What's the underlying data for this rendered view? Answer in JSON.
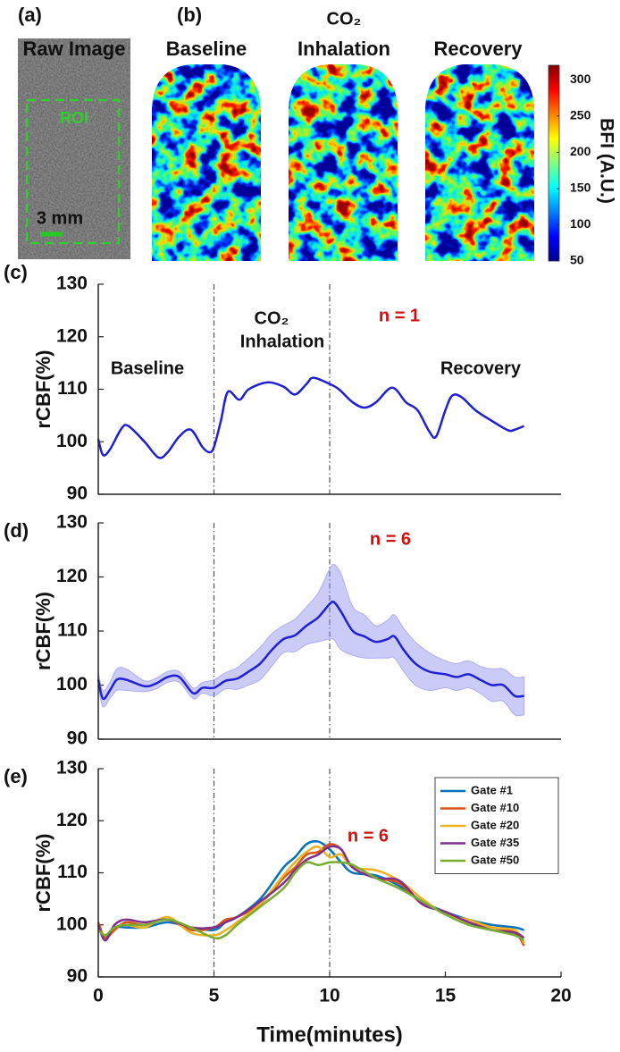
{
  "top": {
    "panel_a": "(a)",
    "raw_title": "Raw Image",
    "roi": "ROI",
    "scale_bar": "3 mm",
    "panel_b": "(b)",
    "maps": [
      {
        "title": [
          "Baseline"
        ]
      },
      {
        "title": [
          "CO₂",
          "Inhalation"
        ]
      },
      {
        "title": [
          "Recovery"
        ]
      }
    ]
  },
  "chart_data": [
    {
      "type": "colorbar",
      "label": "BFI (A.U.)",
      "colormap": "jet",
      "ylim": [
        50,
        320
      ],
      "yticks": [
        50,
        100,
        150,
        200,
        250,
        300
      ]
    },
    {
      "type": "line",
      "panel_label": "(c)",
      "ylabel": "rCBF(%)",
      "xlim": [
        0,
        20
      ],
      "ylim": [
        90,
        130
      ],
      "yticks": [
        90,
        100,
        110,
        120,
        130
      ],
      "vlines": [
        5,
        10
      ],
      "annotations": [
        "Baseline",
        "CO₂",
        "Inhalation",
        "n = 1",
        "Recovery"
      ],
      "x": [
        0,
        0.2,
        0.5,
        1.0,
        1.3,
        2,
        2.6,
        3,
        3.5,
        4,
        4.5,
        4.8,
        5,
        5.3,
        5.6,
        6.1,
        6.5,
        7.3,
        8,
        8.5,
        9,
        9.3,
        10,
        10.4,
        11,
        11.5,
        12,
        12.7,
        13.3,
        13.8,
        14.3,
        14.6,
        15,
        15.3,
        15.7,
        16.3,
        17,
        17.7,
        18,
        18.4
      ],
      "series": [
        {
          "color": "#1f1fd6",
          "values": [
            100.5,
            97.5,
            98.5,
            102.5,
            103,
            100,
            97,
            98,
            101,
            102.3,
            99,
            98,
            99,
            104,
            109.5,
            108,
            110,
            111.3,
            110.5,
            109,
            111,
            112.2,
            111,
            110,
            107.5,
            106.5,
            107.5,
            110.3,
            107.5,
            106,
            102,
            101,
            106,
            108.8,
            108.5,
            106,
            104,
            102.2,
            102.3,
            103
          ]
        }
      ]
    },
    {
      "type": "line",
      "panel_label": "(d)",
      "ylabel": "rCBF(%)",
      "xlim": [
        0,
        20
      ],
      "ylim": [
        90,
        130
      ],
      "yticks": [
        90,
        100,
        110,
        120,
        130
      ],
      "vlines": [
        5,
        10
      ],
      "annotations": [
        "n = 6"
      ],
      "x": [
        0,
        0.2,
        0.5,
        0.8,
        1.2,
        2,
        2.5,
        3,
        3.5,
        4.1,
        4.5,
        5,
        5.5,
        6,
        6.5,
        7,
        7.5,
        8,
        8.5,
        9,
        9.5,
        10,
        10.2,
        10.5,
        11,
        11.5,
        12,
        12.5,
        12.8,
        13.2,
        13.7,
        14.3,
        15,
        15.5,
        16,
        16.5,
        17,
        17.5,
        18,
        18.4
      ],
      "series": [
        {
          "color": "#1f1fd6",
          "band_color": "#8c8cf0",
          "values": [
            101,
            97.5,
            99,
            101,
            101,
            99.8,
            100.3,
            101.5,
            101.5,
            98.5,
            99.5,
            99.5,
            100.8,
            101.2,
            102.5,
            104,
            106.5,
            108.5,
            109.2,
            111,
            112.5,
            115,
            115.3,
            113.5,
            110,
            109,
            108,
            108.5,
            109,
            106.5,
            104,
            102.5,
            102,
            101.5,
            102,
            101,
            100,
            100,
            98,
            98
          ],
          "upper": [
            102.5,
            99,
            100.5,
            103,
            103,
            100.8,
            101.3,
            102.5,
            102.5,
            99.5,
            100.5,
            101,
            102.3,
            103.2,
            105,
            107,
            109.5,
            111,
            112.2,
            114.5,
            117,
            121.5,
            122.3,
            120.5,
            114.5,
            113,
            111,
            112,
            113,
            110.5,
            108,
            106,
            104.5,
            104,
            104.5,
            103.5,
            103,
            103,
            101.5,
            101.5
          ],
          "lower": [
            99.5,
            96,
            97.5,
            99,
            99,
            98.8,
            99.3,
            100.5,
            100.5,
            97.5,
            98.5,
            98,
            99.3,
            99.2,
            100,
            101,
            103.5,
            106,
            106.2,
            107.5,
            108,
            108.5,
            108.3,
            106.5,
            105.5,
            105,
            105,
            105,
            105,
            102.5,
            100,
            99,
            99.5,
            99,
            99.5,
            98.5,
            97,
            97,
            94.5,
            94.5
          ]
        }
      ]
    },
    {
      "type": "line",
      "panel_label": "(e)",
      "ylabel": "rCBF(%)",
      "xlabel": "Time(minutes)",
      "xlim": [
        0,
        20
      ],
      "xticks": [
        0,
        5,
        10,
        15,
        20
      ],
      "ylim": [
        90,
        130
      ],
      "yticks": [
        90,
        100,
        110,
        120,
        130
      ],
      "vlines": [
        5,
        10
      ],
      "annotations": [
        "n = 6"
      ],
      "legend": "upper right",
      "x": [
        0,
        0.3,
        0.7,
        1.2,
        2,
        3,
        4,
        5,
        5.5,
        6,
        7,
        8,
        8.5,
        9,
        9.5,
        10,
        10.5,
        11,
        12,
        13,
        14,
        15,
        16,
        17,
        18,
        18.4
      ],
      "series": [
        {
          "name": "Gate #1",
          "color": "#0072bd",
          "values": [
            100,
            97.5,
            99.5,
            99.5,
            99.5,
            100.5,
            99.5,
            99,
            100.5,
            101.5,
            105,
            111,
            113,
            115.5,
            116,
            114.5,
            112,
            110,
            109.5,
            107.5,
            104.5,
            102.5,
            101,
            100,
            99.5,
            99
          ]
        },
        {
          "name": "Gate #10",
          "color": "#d95319",
          "values": [
            100.5,
            97.5,
            99,
            100.5,
            100,
            101,
            99,
            99.5,
            101,
            101.5,
            104,
            109,
            111,
            113.5,
            114,
            115.5,
            114.5,
            111,
            109,
            108,
            104,
            102.5,
            100.5,
            99.5,
            98.5,
            96
          ]
        },
        {
          "name": "Gate #20",
          "color": "#edb120",
          "values": [
            99.5,
            98,
            99.5,
            100,
            99.5,
            101.5,
            98.5,
            98,
            99,
            100.5,
            104,
            109.5,
            112,
            114,
            115,
            113,
            113.5,
            111,
            110.5,
            108.5,
            105,
            102,
            101,
            99.5,
            99,
            96.5
          ]
        },
        {
          "name": "Gate #35",
          "color": "#7e2f8e",
          "values": [
            100,
            97,
            100,
            101,
            100.5,
            101,
            99.5,
            99.5,
            100.5,
            101.5,
            104.5,
            108,
            110.5,
            112.5,
            113.5,
            115,
            114.5,
            111,
            109,
            108.5,
            104,
            102.5,
            100.5,
            99,
            98.5,
            97.5
          ]
        },
        {
          "name": "Gate #50",
          "color": "#77ac30",
          "values": [
            99,
            98,
            99.5,
            100,
            100,
            101,
            99.5,
            97.5,
            98,
            100,
            103.5,
            107,
            110,
            112,
            111.5,
            112,
            112,
            111.5,
            109,
            107,
            104.5,
            102,
            100,
            99,
            98,
            97
          ]
        }
      ]
    }
  ]
}
